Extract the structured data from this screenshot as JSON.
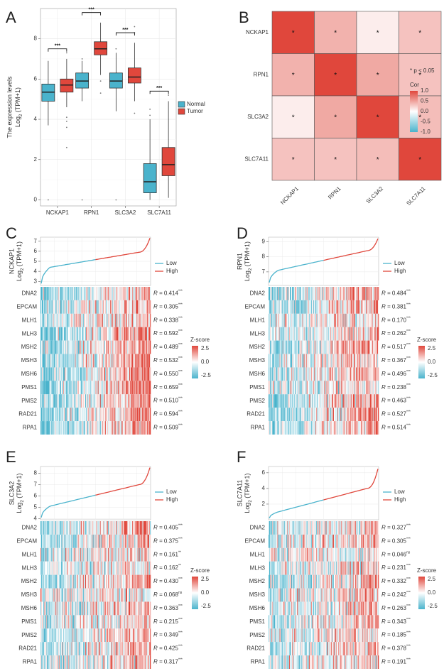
{
  "colors": {
    "normal": "#4ab3cc",
    "tumor": "#e0473c",
    "low": "#4ab3cc",
    "high": "#e0473c",
    "grid": "#e6e6e6",
    "sigline": "#000000"
  },
  "chart_data": [
    {
      "panel": "A",
      "type": "box",
      "ylabel_line1": "The expression levels",
      "ylabel_main": "Log",
      "ylabel_sub": "2",
      "ylabel_tail": " (TPM+1)",
      "categories": [
        "NCKAP1",
        "RPN1",
        "SLC3A2",
        "SLC7A11"
      ],
      "y_ticks": [
        0,
        2,
        4,
        6,
        8
      ],
      "ylim": [
        -0.3,
        9.5
      ],
      "legend": [
        {
          "label": "Normal",
          "key": "normal"
        },
        {
          "label": "Tumor",
          "key": "tumor"
        }
      ],
      "significance": [
        "***",
        "***",
        "***",
        "***"
      ],
      "series": [
        {
          "name": "Normal",
          "boxes": [
            {
              "min": 3.7,
              "q1": 4.9,
              "median": 5.35,
              "q3": 5.75,
              "max": 6.9,
              "outliers": [
                0
              ]
            },
            {
              "min": 4.9,
              "q1": 5.55,
              "median": 5.9,
              "q3": 6.3,
              "max": 6.9,
              "outliers": [
                7.0,
                0
              ]
            },
            {
              "min": 4.4,
              "q1": 5.55,
              "median": 5.9,
              "q3": 6.3,
              "max": 7.3,
              "outliers": [
                7.5,
                0
              ]
            },
            {
              "min": 0,
              "q1": 0.35,
              "median": 0.9,
              "q3": 1.8,
              "max": 4.0,
              "outliers": [
                4.2,
                4.5
              ]
            }
          ]
        },
        {
          "name": "Tumor",
          "boxes": [
            {
              "min": 4.6,
              "q1": 5.35,
              "median": 5.7,
              "q3": 6.0,
              "max": 7.0,
              "outliers": [
                4.1,
                3.9,
                3.6,
                2.6,
                7.3
              ]
            },
            {
              "min": 6.2,
              "q1": 7.2,
              "median": 7.5,
              "q3": 7.85,
              "max": 8.8,
              "outliers": [
                5.9,
                5.3
              ]
            },
            {
              "min": 4.9,
              "q1": 5.8,
              "median": 6.1,
              "q3": 6.55,
              "max": 7.8,
              "outliers": [
                4.3,
                8.3,
                8.6
              ]
            },
            {
              "min": 0.1,
              "q1": 1.2,
              "median": 1.75,
              "q3": 2.6,
              "max": 4.9,
              "outliers": [
                5.2
              ]
            }
          ]
        }
      ]
    },
    {
      "panel": "B",
      "type": "heatmap",
      "rows": [
        "NCKAP1",
        "RPN1",
        "SLC3A2",
        "SLC7A11"
      ],
      "cols": [
        "NCKAP1",
        "RPN1",
        "SLC3A2",
        "SLC7A11"
      ],
      "values": [
        [
          1.0,
          0.42,
          0.1,
          0.33
        ],
        [
          0.42,
          1.0,
          0.47,
          0.33
        ],
        [
          0.1,
          0.47,
          1.0,
          0.36
        ],
        [
          0.33,
          0.33,
          0.36,
          1.0
        ]
      ],
      "cell_mark": "*",
      "note": "* p < 0.05",
      "legend_title": "Cor",
      "legend_ticks": [
        "1.0",
        "0.5",
        "0.0",
        "-0.5",
        "-1.0"
      ],
      "legend_range": [
        -1.0,
        1.0
      ]
    },
    {
      "panel": "C",
      "gene": "NCKAP1",
      "type": "line+heatmap",
      "ylabel_main": "Log",
      "ylabel_sub": "2",
      "ylabel_tail": " (TPM+1)",
      "y_ticks": [
        "3",
        "4",
        "5",
        "6",
        "7"
      ],
      "ylim": [
        2.6,
        7.4
      ],
      "curve": {
        "start": 2.8,
        "knee": 4.4,
        "mid": 4.85,
        "shoulder": 5.9,
        "end": 7.3
      },
      "legend": [
        "Low",
        "High"
      ],
      "heat_rows": [
        "DNA2",
        "EPCAM",
        "MLH1",
        "MLH3",
        "MSH2",
        "MSH3",
        "MSH6",
        "PMS1",
        "PMS2",
        "RAD21",
        "RPA1"
      ],
      "r_values": [
        "0.414",
        "0.305",
        "0.338",
        "0.592",
        "0.489",
        "0.532",
        "0.550",
        "0.659",
        "0.510",
        "0.594",
        "0.509"
      ],
      "sig": [
        "***",
        "***",
        "***",
        "***",
        "***",
        "***",
        "***",
        "***",
        "***",
        "***",
        "***"
      ],
      "zscore_title": "Z-score",
      "zscore_ticks": [
        "2.5",
        "0.0",
        "-2.5"
      ]
    },
    {
      "panel": "D",
      "gene": "RPN1",
      "type": "line+heatmap",
      "ylabel_main": "Log",
      "ylabel_sub": "2",
      "ylabel_tail": " (TPM+1)",
      "y_ticks": [
        "7",
        "8",
        "9"
      ],
      "ylim": [
        6.1,
        9.3
      ],
      "curve": {
        "start": 6.3,
        "knee": 7.1,
        "mid": 7.65,
        "shoulder": 8.4,
        "end": 9.2
      },
      "legend": [
        "Low",
        "High"
      ],
      "heat_rows": [
        "DNA2",
        "EPCAM",
        "MLH1",
        "MLH3",
        "MSH2",
        "MSH3",
        "MSH6",
        "PMS1",
        "PMS2",
        "RAD21",
        "RPA1"
      ],
      "r_values": [
        "0.484",
        "0.381",
        "0.170",
        "0.262",
        "0.517",
        "0.367",
        "0.496",
        "0.238",
        "0.463",
        "0.527",
        "0.514"
      ],
      "sig": [
        "***",
        "***",
        "***",
        "***",
        "***",
        "***",
        "***",
        "***",
        "***",
        "***",
        "***"
      ],
      "zscore_title": "Z-score",
      "zscore_ticks": [
        "2.5",
        "0.0",
        "-2.5"
      ]
    },
    {
      "panel": "E",
      "gene": "SLC3A2",
      "type": "line+heatmap",
      "ylabel_main": "Log",
      "ylabel_sub": "2",
      "ylabel_tail": " (TPM+1)",
      "y_ticks": [
        "4",
        "5",
        "6",
        "7",
        "8"
      ],
      "ylim": [
        3.9,
        8.6
      ],
      "curve": {
        "start": 4.1,
        "knee": 5.1,
        "mid": 6.0,
        "shoulder": 7.0,
        "end": 8.5
      },
      "legend": [
        "Low",
        "High"
      ],
      "heat_rows": [
        "DNA2",
        "EPCAM",
        "MLH1",
        "MLH3",
        "MSH2",
        "MSH3",
        "MSH6",
        "PMS1",
        "PMS2",
        "RAD21",
        "RPA1"
      ],
      "r_values": [
        "0.405",
        "0.375",
        "0.161",
        "0.162",
        "0.430",
        "0.068",
        "0.363",
        "0.215",
        "0.349",
        "0.425",
        "0.317"
      ],
      "sig": [
        "***",
        "***",
        "**",
        "**",
        "***",
        "ns",
        "***",
        "***",
        "***",
        "***",
        "***"
      ],
      "zscore_title": "Z-score",
      "zscore_ticks": [
        "2.5",
        "0.0",
        "-2.5"
      ]
    },
    {
      "panel": "F",
      "gene": "SLC7A11",
      "type": "line+heatmap",
      "ylabel_main": "Log",
      "ylabel_sub": "2",
      "ylabel_tail": " (TPM+1)",
      "y_ticks": [
        "2",
        "4",
        "6"
      ],
      "ylim": [
        0.0,
        6.8
      ],
      "curve": {
        "start": 0.2,
        "knee": 1.0,
        "mid": 2.2,
        "shoulder": 4.0,
        "end": 6.5
      },
      "legend": [
        "Low",
        "High"
      ],
      "heat_rows": [
        "DNA2",
        "EPCAM",
        "MLH1",
        "MLH3",
        "MSH2",
        "MSH3",
        "MSH6",
        "PMS1",
        "PMS2",
        "RAD21",
        "RPA1"
      ],
      "r_values": [
        "0.327",
        "0.305",
        "0.046",
        "0.231",
        "0.332",
        "0.242",
        "0.263",
        "0.343",
        "0.185",
        "0.378",
        "0.191"
      ],
      "sig": [
        "***",
        "***",
        "ns",
        "***",
        "***",
        "***",
        "***",
        "***",
        "***",
        "***",
        "***"
      ],
      "zscore_title": "Z-score",
      "zscore_ticks": [
        "2.5",
        "0.0",
        "-2.5"
      ]
    }
  ],
  "r_prefix": "R = "
}
